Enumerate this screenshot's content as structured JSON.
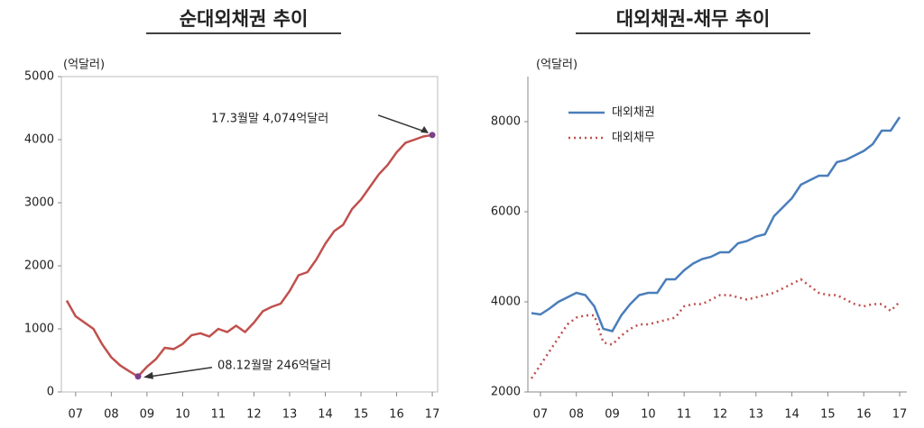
{
  "chart_data": [
    {
      "type": "line",
      "title": "순대외채권 추이",
      "unit": "(억달러)",
      "x": [
        6.75,
        7,
        7.25,
        7.5,
        7.75,
        8,
        8.25,
        8.5,
        8.75,
        9,
        9.25,
        9.5,
        9.75,
        10,
        10.25,
        10.5,
        10.75,
        11,
        11.25,
        11.5,
        11.75,
        12,
        12.25,
        12.5,
        12.75,
        13,
        13.25,
        13.5,
        13.75,
        14,
        14.25,
        14.5,
        14.75,
        15,
        15.25,
        15.5,
        15.75,
        16,
        16.25,
        16.5,
        16.75,
        17
      ],
      "values": [
        1450,
        1200,
        1100,
        1000,
        750,
        550,
        420,
        330,
        246,
        400,
        520,
        700,
        680,
        760,
        900,
        930,
        880,
        1000,
        950,
        1050,
        950,
        1100,
        1280,
        1350,
        1400,
        1600,
        1850,
        1900,
        2100,
        2350,
        2550,
        2650,
        2900,
        3050,
        3250,
        3450,
        3600,
        3800,
        3950,
        4000,
        4050,
        4074
      ],
      "color": "#c0504d",
      "marker_color": "#7b3f8c",
      "xlim": [
        6.6,
        17.15
      ],
      "xticks": [
        {
          "value": 7,
          "label": "07"
        },
        {
          "value": 8,
          "label": "08"
        },
        {
          "value": 9,
          "label": "09"
        },
        {
          "value": 10,
          "label": "10"
        },
        {
          "value": 11,
          "label": "11"
        },
        {
          "value": 12,
          "label": "12"
        },
        {
          "value": 13,
          "label": "13"
        },
        {
          "value": 14,
          "label": "14"
        },
        {
          "value": 15,
          "label": "15"
        },
        {
          "value": 16,
          "label": "16"
        },
        {
          "value": 17,
          "label": "17"
        }
      ],
      "ylim": [
        0,
        5000
      ],
      "yticks": [
        0,
        1000,
        2000,
        3000,
        4000,
        5000
      ],
      "annotations": [
        "17.3월말 4,074억달러",
        "08.12월말 246억달러"
      ]
    },
    {
      "type": "line",
      "title": "대외채권-채무 추이",
      "unit": "(억달러)",
      "x": [
        6.75,
        7,
        7.25,
        7.5,
        7.75,
        8,
        8.25,
        8.5,
        8.75,
        9,
        9.25,
        9.5,
        9.75,
        10,
        10.25,
        10.5,
        10.75,
        11,
        11.25,
        11.5,
        11.75,
        12,
        12.25,
        12.5,
        12.75,
        13,
        13.25,
        13.5,
        13.75,
        14,
        14.25,
        14.5,
        14.75,
        15,
        15.25,
        15.5,
        15.75,
        16,
        16.25,
        16.5,
        16.75,
        17
      ],
      "series": [
        {
          "name": "대외채권",
          "color": "#4a7ebb",
          "linestyle": "solid",
          "values": [
            3750,
            3720,
            3850,
            4000,
            4100,
            4200,
            4150,
            3900,
            3400,
            3350,
            3700,
            3950,
            4150,
            4200,
            4200,
            4500,
            4500,
            4700,
            4850,
            4950,
            5000,
            5100,
            5100,
            5300,
            5350,
            5450,
            5500,
            5900,
            6100,
            6300,
            6600,
            6700,
            6800,
            6800,
            7100,
            7150,
            7250,
            7350,
            7500,
            7800,
            7800,
            8100
          ]
        },
        {
          "name": "대외채무",
          "color": "#c0504d",
          "linestyle": "dotted",
          "values": [
            2300,
            2600,
            2900,
            3200,
            3500,
            3650,
            3700,
            3700,
            3100,
            3050,
            3250,
            3400,
            3500,
            3500,
            3550,
            3600,
            3650,
            3900,
            3950,
            3950,
            4050,
            4150,
            4150,
            4100,
            4050,
            4100,
            4150,
            4200,
            4300,
            4400,
            4500,
            4350,
            4200,
            4150,
            4150,
            4050,
            3950,
            3900,
            3950,
            3950,
            3800,
            4000
          ]
        }
      ],
      "xlim": [
        6.65,
        17.2
      ],
      "xticks": [
        {
          "value": 7,
          "label": "07"
        },
        {
          "value": 8,
          "label": "08"
        },
        {
          "value": 9,
          "label": "09"
        },
        {
          "value": 10,
          "label": "10"
        },
        {
          "value": 11,
          "label": "11"
        },
        {
          "value": 12,
          "label": "12"
        },
        {
          "value": 13,
          "label": "13"
        },
        {
          "value": 14,
          "label": "14"
        },
        {
          "value": 15,
          "label": "15"
        },
        {
          "value": 16,
          "label": "16"
        },
        {
          "value": 17,
          "label": "17"
        }
      ],
      "ylim": [
        2000,
        9000
      ],
      "yticks": [
        2000,
        4000,
        6000,
        8000
      ],
      "legend": "upper left"
    }
  ]
}
